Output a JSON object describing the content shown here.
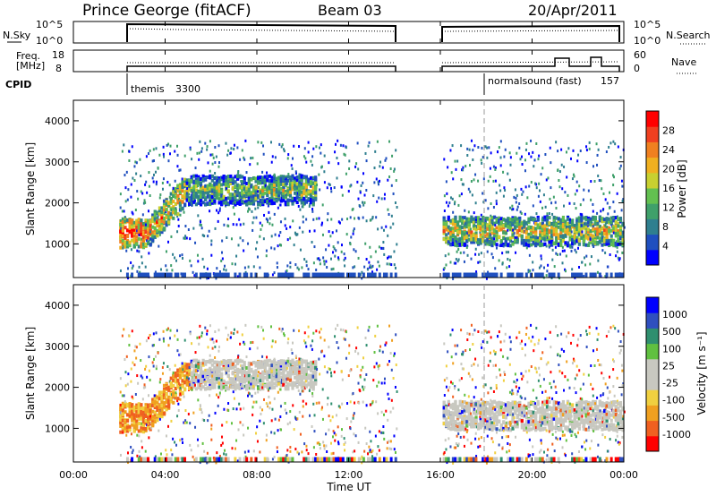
{
  "header": {
    "station": "Prince George (fitACF)",
    "beam": "Beam 03",
    "date": "20/Apr/2011"
  },
  "status_strips": {
    "nsky_label": "N.Sky",
    "nsky_ticks": [
      "10^5",
      "10^0"
    ],
    "nsearch_label": "N.Search",
    "nsearch_ticks": [
      "10^5",
      "10^0"
    ],
    "freq_label": [
      "Freq.",
      "[MHz]"
    ],
    "freq_ticks": [
      "18",
      "8"
    ],
    "nave_label": "Nave",
    "nave_ticks": [
      "60",
      "0"
    ],
    "cpid_label": "CPID",
    "cpid_segments": [
      {
        "name": "themis",
        "code": "3300",
        "start_hour": 2.0
      },
      {
        "name": "normalsound (fast)",
        "code": "157",
        "start_hour": 18.0
      }
    ],
    "data_gaps_hours": [
      [
        14.0,
        16.0
      ]
    ]
  },
  "chart_data": [
    {
      "type": "heatmap",
      "name_panel": "power",
      "ylabel": "Slant Range [km]",
      "xlabel": "",
      "xlim": [
        0,
        24
      ],
      "ylim": [
        180,
        4500
      ],
      "yticks": [
        1000,
        2000,
        3000,
        4000
      ],
      "colorbar_label": "Power [dB]",
      "colorbar_ticks": [
        "28",
        "24",
        "20",
        "16",
        "12",
        "8",
        "4"
      ],
      "colors": [
        "#0000ff",
        "#1f4fbf",
        "#2f7f8f",
        "#3fa06a",
        "#63c050",
        "#c8d030",
        "#f0b020",
        "#f08020",
        "#f04020",
        "#ff0000"
      ],
      "features": [
        {
          "start_hour": 2.0,
          "end_hour": 3.2,
          "range_km": 1300,
          "level": 0.85
        },
        {
          "start_hour": 3.2,
          "end_hour": 4.8,
          "range_km": 1500,
          "level": 0.7
        },
        {
          "start_hour": 4.8,
          "end_hour": 10.5,
          "range_km": 2350,
          "level": 0.5
        },
        {
          "start_hour": 16.0,
          "end_hour": 24.0,
          "range_km": 1350,
          "level": 0.6
        }
      ]
    },
    {
      "type": "heatmap",
      "name_panel": "velocity",
      "ylabel": "Slant Range [km]",
      "xlabel": "Time UT",
      "xlim": [
        0,
        24
      ],
      "ylim": [
        180,
        4500
      ],
      "yticks": [
        1000,
        2000,
        3000,
        4000
      ],
      "xticks": [
        "00:00",
        "04:00",
        "08:00",
        "12:00",
        "16:00",
        "20:00",
        "00:00"
      ],
      "colorbar_label": "Velocity [m s⁻¹]",
      "colorbar_ticks": [
        "1000",
        "500",
        "100",
        "25",
        "-25",
        "-100",
        "-500",
        "-1000"
      ],
      "colors": [
        "#ff0000",
        "#f06020",
        "#f0a020",
        "#f0d040",
        "#c8c8c0",
        "#c8c8c0",
        "#60c040",
        "#2f8f6f",
        "#2f4fbf",
        "#0000ff"
      ]
    }
  ]
}
